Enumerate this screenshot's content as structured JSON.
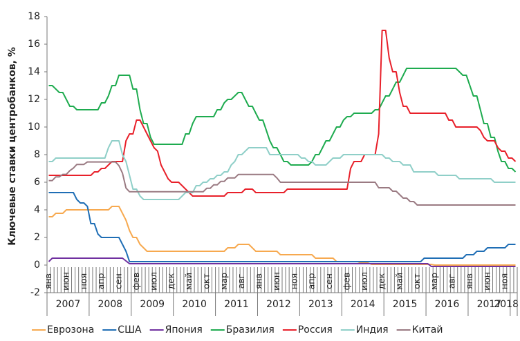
{
  "chart_data": {
    "type": "line",
    "y_label": "Ключевые ставки центробанков, %",
    "ylim": [
      -2,
      18
    ],
    "yticks": [
      -2,
      0,
      2,
      4,
      6,
      8,
      10,
      12,
      14,
      16,
      18
    ],
    "categories": [
      "янв",
      null,
      null,
      null,
      null,
      "июн",
      null,
      null,
      null,
      null,
      "ноя",
      null,
      null,
      null,
      null,
      "апр",
      null,
      null,
      null,
      null,
      "сен",
      null,
      null,
      null,
      null,
      "фев",
      null,
      null,
      null,
      null,
      "июл",
      null,
      null,
      null,
      null,
      "дек",
      null,
      null,
      null,
      null,
      "май",
      null,
      null,
      null,
      null,
      "окт",
      null,
      null,
      null,
      null,
      "мар",
      null,
      null,
      null,
      null,
      "авг",
      null,
      null,
      null,
      null,
      "янв",
      null,
      null,
      null,
      null,
      "июн",
      null,
      null,
      null,
      null,
      "ноя",
      null,
      null,
      null,
      null,
      "апр",
      null,
      null,
      null,
      null,
      "сен",
      null,
      null,
      null,
      null,
      "фев",
      null,
      null,
      null,
      null,
      "июл",
      null,
      null,
      null,
      null,
      "дек",
      null,
      null,
      null,
      null,
      "май",
      null,
      null,
      null,
      null,
      "окт",
      null,
      null,
      null,
      null,
      "мар",
      null,
      null,
      null,
      null,
      "авг",
      null,
      null,
      null,
      null,
      "янв",
      null,
      null,
      null,
      null,
      "июн",
      null,
      null,
      null,
      null,
      "ноя",
      null,
      null,
      null
    ],
    "years": [
      "2007",
      "2008",
      "2009",
      "2010",
      "2011",
      "2012",
      "2013",
      "2014",
      "2015",
      "2016",
      "2017",
      "2018"
    ],
    "series": [
      {
        "name": "Еврозона",
        "color": "#f7a94f",
        "values": [
          3.5,
          3.5,
          3.75,
          3.75,
          3.75,
          4,
          4,
          4,
          4,
          4,
          4,
          4,
          4,
          4,
          4,
          4,
          4,
          4,
          4.25,
          4.25,
          4.25,
          3.75,
          3.25,
          2.5,
          2,
          2,
          1.5,
          1.25,
          1,
          1,
          1,
          1,
          1,
          1,
          1,
          1,
          1,
          1,
          1,
          1,
          1,
          1,
          1,
          1,
          1,
          1,
          1,
          1,
          1,
          1,
          1,
          1.25,
          1.25,
          1.25,
          1.5,
          1.5,
          1.5,
          1.5,
          1.25,
          1,
          1,
          1,
          1,
          1,
          1,
          1,
          0.75,
          0.75,
          0.75,
          0.75,
          0.75,
          0.75,
          0.75,
          0.75,
          0.75,
          0.75,
          0.5,
          0.5,
          0.5,
          0.5,
          0.5,
          0.5,
          0.25,
          0.25,
          0.25,
          0.25,
          0.25,
          0.25,
          0.25,
          0.15,
          0.15,
          0.15,
          0.05,
          0.05,
          0.05,
          0.05,
          0.05,
          0.05,
          0.05,
          0.05,
          0.05,
          0.05,
          0.05,
          0.05,
          0.05,
          0.05,
          0.05,
          0.05,
          0.05,
          0.05,
          0,
          0,
          0,
          0,
          0,
          0,
          0,
          0,
          0,
          0,
          0,
          0,
          0,
          0,
          0,
          0,
          0,
          0,
          0,
          0,
          0,
          0,
          0,
          0
        ]
      },
      {
        "name": "США",
        "color": "#1f6eb5",
        "values": [
          5.25,
          5.25,
          5.25,
          5.25,
          5.25,
          5.25,
          5.25,
          5.25,
          4.75,
          4.5,
          4.5,
          4.25,
          3,
          3,
          2.25,
          2,
          2,
          2,
          2,
          2,
          2,
          1.5,
          1,
          0.25,
          0.25,
          0.25,
          0.25,
          0.25,
          0.25,
          0.25,
          0.25,
          0.25,
          0.25,
          0.25,
          0.25,
          0.25,
          0.25,
          0.25,
          0.25,
          0.25,
          0.25,
          0.25,
          0.25,
          0.25,
          0.25,
          0.25,
          0.25,
          0.25,
          0.25,
          0.25,
          0.25,
          0.25,
          0.25,
          0.25,
          0.25,
          0.25,
          0.25,
          0.25,
          0.25,
          0.25,
          0.25,
          0.25,
          0.25,
          0.25,
          0.25,
          0.25,
          0.25,
          0.25,
          0.25,
          0.25,
          0.25,
          0.25,
          0.25,
          0.25,
          0.25,
          0.25,
          0.25,
          0.25,
          0.25,
          0.25,
          0.25,
          0.25,
          0.25,
          0.25,
          0.25,
          0.25,
          0.25,
          0.25,
          0.25,
          0.25,
          0.25,
          0.25,
          0.25,
          0.25,
          0.25,
          0.25,
          0.25,
          0.25,
          0.25,
          0.25,
          0.25,
          0.25,
          0.25,
          0.25,
          0.25,
          0.25,
          0.25,
          0.5,
          0.5,
          0.5,
          0.5,
          0.5,
          0.5,
          0.5,
          0.5,
          0.5,
          0.5,
          0.5,
          0.5,
          0.75,
          0.75,
          0.75,
          1,
          1,
          1,
          1.25,
          1.25,
          1.25,
          1.25,
          1.25,
          1.25,
          1.5,
          1.5,
          1.5
        ]
      },
      {
        "name": "Япония",
        "color": "#7030a0",
        "values": [
          0.25,
          0.5,
          0.5,
          0.5,
          0.5,
          0.5,
          0.5,
          0.5,
          0.5,
          0.5,
          0.5,
          0.5,
          0.5,
          0.5,
          0.5,
          0.5,
          0.5,
          0.5,
          0.5,
          0.5,
          0.5,
          0.5,
          0.3,
          0.1,
          0.1,
          0.1,
          0.1,
          0.1,
          0.1,
          0.1,
          0.1,
          0.1,
          0.1,
          0.1,
          0.1,
          0.1,
          0.1,
          0.1,
          0.1,
          0.1,
          0.1,
          0.1,
          0.1,
          0.1,
          0.1,
          0.1,
          0.1,
          0.1,
          0.1,
          0.1,
          0.1,
          0.1,
          0.1,
          0.1,
          0.1,
          0.1,
          0.1,
          0.1,
          0.1,
          0.1,
          0.1,
          0.1,
          0.1,
          0.1,
          0.1,
          0.1,
          0.1,
          0.1,
          0.1,
          0.1,
          0.1,
          0.1,
          0.1,
          0.1,
          0.1,
          0.1,
          0.1,
          0.1,
          0.1,
          0.1,
          0.1,
          0.1,
          0.1,
          0.1,
          0.1,
          0.1,
          0.1,
          0.1,
          0.1,
          0.1,
          0.1,
          0.1,
          0.1,
          0.1,
          0.1,
          0.1,
          0.1,
          0.1,
          0.1,
          0.1,
          0.1,
          0.1,
          0.1,
          0.1,
          0.1,
          0.1,
          0.1,
          0.1,
          0.1,
          -0.1,
          -0.1,
          -0.1,
          -0.1,
          -0.1,
          -0.1,
          -0.1,
          -0.1,
          -0.1,
          -0.1,
          -0.1,
          -0.1,
          -0.1,
          -0.1,
          -0.1,
          -0.1,
          -0.1,
          -0.1,
          -0.1,
          -0.1,
          -0.1,
          -0.1,
          -0.1,
          -0.1,
          -0.1
        ]
      },
      {
        "name": "Бразилия",
        "color": "#1eab4f",
        "values": [
          13,
          13,
          12.75,
          12.5,
          12.5,
          12,
          11.5,
          11.5,
          11.25,
          11.25,
          11.25,
          11.25,
          11.25,
          11.25,
          11.25,
          11.75,
          11.75,
          12.25,
          13,
          13,
          13.75,
          13.75,
          13.75,
          13.75,
          12.75,
          12.75,
          11.25,
          10.25,
          10.25,
          9.25,
          8.75,
          8.75,
          8.75,
          8.75,
          8.75,
          8.75,
          8.75,
          8.75,
          8.75,
          9.5,
          9.5,
          10.25,
          10.75,
          10.75,
          10.75,
          10.75,
          10.75,
          10.75,
          11.25,
          11.25,
          11.75,
          12,
          12,
          12.25,
          12.5,
          12.5,
          12,
          11.5,
          11.5,
          11,
          10.5,
          10.5,
          9.75,
          9,
          8.5,
          8.5,
          8,
          7.5,
          7.5,
          7.25,
          7.25,
          7.25,
          7.25,
          7.25,
          7.25,
          7.5,
          8,
          8,
          8.5,
          9,
          9,
          9.5,
          10,
          10,
          10.5,
          10.75,
          10.75,
          11,
          11,
          11,
          11,
          11,
          11,
          11.25,
          11.25,
          11.75,
          12.25,
          12.25,
          12.75,
          13.25,
          13.25,
          13.75,
          14.25,
          14.25,
          14.25,
          14.25,
          14.25,
          14.25,
          14.25,
          14.25,
          14.25,
          14.25,
          14.25,
          14.25,
          14.25,
          14.25,
          14.25,
          14,
          13.75,
          13.75,
          13,
          12.25,
          12.25,
          11.25,
          10.25,
          10.25,
          9.25,
          9.25,
          8.25,
          7.5,
          7.5,
          7,
          7,
          6.75
        ]
      },
      {
        "name": "Россия",
        "color": "#e8202a",
        "values": [
          6.5,
          6.5,
          6.5,
          6.5,
          6.5,
          6.5,
          6.5,
          6.5,
          6.5,
          6.5,
          6.5,
          6.5,
          6.5,
          6.75,
          6.75,
          7,
          7,
          7.25,
          7.5,
          7.5,
          7.5,
          7.5,
          9,
          9.5,
          9.5,
          10.5,
          10.5,
          10,
          9.5,
          9,
          8.5,
          8.25,
          7.25,
          6.75,
          6.25,
          6,
          6,
          6,
          5.75,
          5.5,
          5.25,
          5,
          5,
          5,
          5,
          5,
          5,
          5,
          5,
          5,
          5,
          5.25,
          5.25,
          5.25,
          5.25,
          5.25,
          5.5,
          5.5,
          5.5,
          5.25,
          5.25,
          5.25,
          5.25,
          5.25,
          5.25,
          5.25,
          5.25,
          5.25,
          5.5,
          5.5,
          5.5,
          5.5,
          5.5,
          5.5,
          5.5,
          5.5,
          5.5,
          5.5,
          5.5,
          5.5,
          5.5,
          5.5,
          5.5,
          5.5,
          5.5,
          5.5,
          7,
          7.5,
          7.5,
          7.5,
          8,
          8,
          8,
          8,
          9.5,
          17,
          17,
          15,
          14,
          14,
          12.5,
          11.5,
          11.5,
          11,
          11,
          11,
          11,
          11,
          11,
          11,
          11,
          11,
          11,
          11,
          10.5,
          10.5,
          10,
          10,
          10,
          10,
          10,
          10,
          10,
          9.75,
          9.25,
          9,
          9,
          9,
          8.5,
          8.25,
          8.25,
          7.75,
          7.75,
          7.5
        ]
      },
      {
        "name": "Индия",
        "color": "#8fcfc8",
        "values": [
          7.5,
          7.5,
          7.75,
          7.75,
          7.75,
          7.75,
          7.75,
          7.75,
          7.75,
          7.75,
          7.75,
          7.75,
          7.75,
          7.75,
          7.75,
          7.75,
          7.75,
          8.5,
          9,
          9,
          9,
          8,
          7.5,
          6.5,
          5.5,
          5.5,
          5,
          4.75,
          4.75,
          4.75,
          4.75,
          4.75,
          4.75,
          4.75,
          4.75,
          4.75,
          4.75,
          4.75,
          5,
          5.25,
          5.25,
          5.25,
          5.75,
          5.75,
          6,
          6,
          6.25,
          6.25,
          6.5,
          6.5,
          6.75,
          6.75,
          7.25,
          7.5,
          8,
          8,
          8.25,
          8.5,
          8.5,
          8.5,
          8.5,
          8.5,
          8.5,
          8,
          8,
          8,
          8,
          8,
          8,
          8,
          8,
          8,
          7.75,
          7.75,
          7.5,
          7.5,
          7.25,
          7.25,
          7.25,
          7.25,
          7.5,
          7.75,
          7.75,
          7.75,
          8,
          8,
          8,
          8,
          8,
          8,
          8,
          8,
          8,
          8,
          8,
          8,
          7.75,
          7.75,
          7.5,
          7.5,
          7.5,
          7.25,
          7.25,
          7.25,
          6.75,
          6.75,
          6.75,
          6.75,
          6.75,
          6.75,
          6.75,
          6.5,
          6.5,
          6.5,
          6.5,
          6.5,
          6.5,
          6.25,
          6.25,
          6.25,
          6.25,
          6.25,
          6.25,
          6.25,
          6.25,
          6.25,
          6.25,
          6,
          6,
          6,
          6,
          6,
          6,
          6
        ]
      },
      {
        "name": "Китай",
        "color": "#9a7a82",
        "values": [
          6.12,
          6.12,
          6.39,
          6.39,
          6.57,
          6.57,
          6.84,
          7.02,
          7.29,
          7.29,
          7.29,
          7.47,
          7.47,
          7.47,
          7.47,
          7.47,
          7.47,
          7.47,
          7.47,
          7.47,
          7.2,
          6.66,
          5.58,
          5.31,
          5.31,
          5.31,
          5.31,
          5.31,
          5.31,
          5.31,
          5.31,
          5.31,
          5.31,
          5.31,
          5.31,
          5.31,
          5.31,
          5.31,
          5.31,
          5.31,
          5.31,
          5.31,
          5.31,
          5.31,
          5.31,
          5.56,
          5.56,
          5.81,
          5.81,
          6.06,
          6.06,
          6.31,
          6.31,
          6.31,
          6.56,
          6.56,
          6.56,
          6.56,
          6.56,
          6.56,
          6.56,
          6.56,
          6.56,
          6.56,
          6.56,
          6.31,
          6,
          6,
          6,
          6,
          6,
          6,
          6,
          6,
          6,
          6,
          6,
          6,
          6,
          6,
          6,
          6,
          6,
          6,
          6,
          6,
          6,
          6,
          6,
          6,
          6,
          6,
          6,
          6,
          5.6,
          5.6,
          5.6,
          5.6,
          5.35,
          5.35,
          5.1,
          4.85,
          4.85,
          4.6,
          4.6,
          4.35,
          4.35,
          4.35,
          4.35,
          4.35,
          4.35,
          4.35,
          4.35,
          4.35,
          4.35,
          4.35,
          4.35,
          4.35,
          4.35,
          4.35,
          4.35,
          4.35,
          4.35,
          4.35,
          4.35,
          4.35,
          4.35,
          4.35,
          4.35,
          4.35,
          4.35,
          4.35,
          4.35,
          4.35
        ]
      }
    ]
  }
}
